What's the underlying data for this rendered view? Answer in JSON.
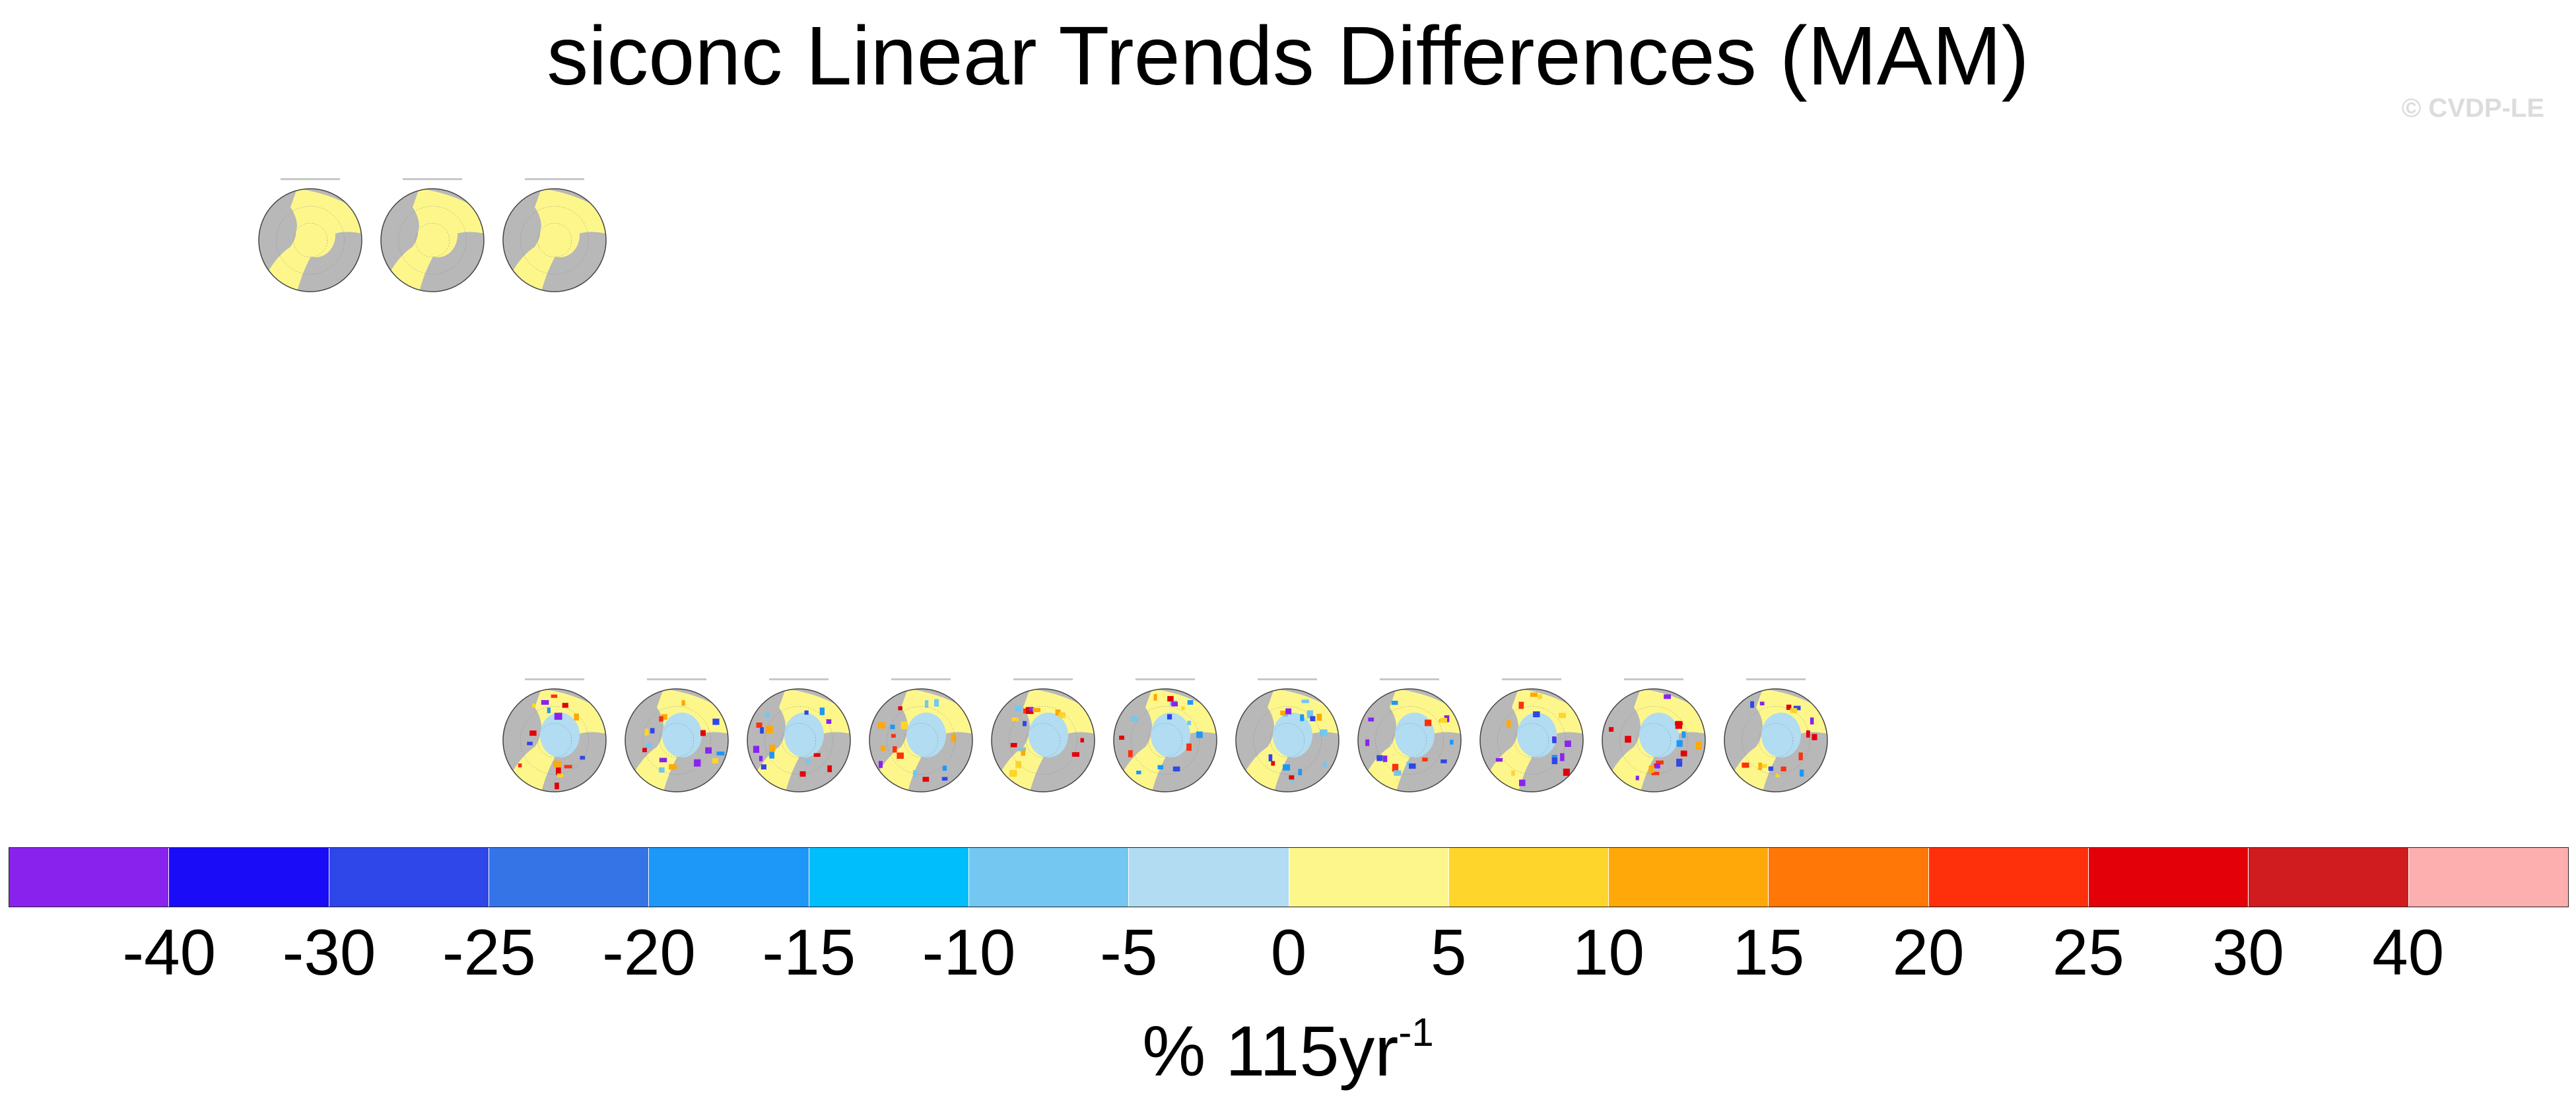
{
  "title": "siconc Linear Trends Differences (MAM)",
  "watermark": "© CVDP-LE",
  "chart_data": {
    "type": "heatmap",
    "title": "siconc Linear Trends Differences (MAM)",
    "panel_count": 14,
    "panel_rows": [
      {
        "row": 1,
        "panels": 3
      },
      {
        "row": 2,
        "panels": 11
      }
    ],
    "colorbar": {
      "tick_labels": [
        "-40",
        "-30",
        "-25",
        "-20",
        "-15",
        "-10",
        "-5",
        "0",
        "5",
        "10",
        "15",
        "20",
        "25",
        "30",
        "40"
      ],
      "colors": [
        "#8a22ee",
        "#1a0cf6",
        "#2f46e8",
        "#3574e7",
        "#1d97f8",
        "#00bdfc",
        "#73c7f1",
        "#b1dcf1",
        "#fdf78b",
        "#fed52b",
        "#fea909",
        "#fe7707",
        "#fe300b",
        "#e40009",
        "#d01c1e",
        "#fdaeaf"
      ],
      "units": "% 115yr",
      "units_superscript": "-1"
    }
  }
}
